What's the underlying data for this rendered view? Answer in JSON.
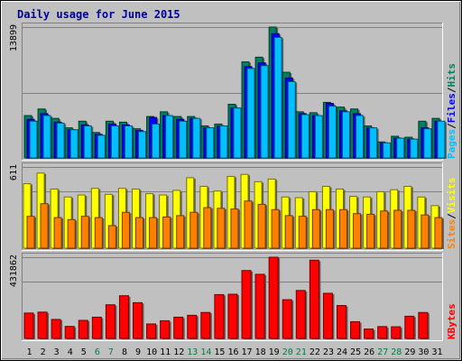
{
  "chart_data": {
    "type": "bar",
    "title": "Daily usage for June 2015",
    "categories": [
      "1",
      "2",
      "3",
      "4",
      "5",
      "6",
      "7",
      "8",
      "9",
      "10",
      "11",
      "12",
      "13",
      "14",
      "15",
      "16",
      "17",
      "18",
      "19",
      "20",
      "21",
      "22",
      "23",
      "24",
      "25",
      "26",
      "27",
      "28",
      "29",
      "30",
      "31"
    ],
    "weekend_days": [
      "6",
      "7",
      "13",
      "14",
      "20",
      "21",
      "27",
      "28"
    ],
    "colors": {
      "hits": "#00805c",
      "files": "#0000ff",
      "pages": "#00c0ff",
      "visits": "#ffff00",
      "sites": "#ff8000",
      "kbytes": "#ff0000",
      "title": "#0000a0",
      "weekend_tick": "#008040",
      "weekday_tick": "#000000",
      "panel_bg": "#c0c0c0",
      "grid": "#808080"
    },
    "panels": [
      {
        "id": "hits-files-pages",
        "ymax_label": "13899",
        "ymax": 13899,
        "legend": [
          {
            "text": "Pages",
            "color": "#00c0ff"
          },
          {
            "text": "/",
            "color": "#000000"
          },
          {
            "text": "Files",
            "color": "#0000ff"
          },
          {
            "text": "/",
            "color": "#000000"
          },
          {
            "text": "Hits",
            "color": "#00805c"
          }
        ],
        "series": [
          {
            "name": "Hits",
            "values": [
              4500,
              5200,
              4200,
              3200,
              3900,
              2700,
              3900,
              3800,
              3100,
              4400,
              4900,
              4400,
              4400,
              3400,
              3600,
              5700,
              10200,
              10700,
              13899,
              9100,
              4900,
              4800,
              5900,
              5400,
              5200,
              3400,
              1700,
              2300,
              2200,
              3900,
              4200
            ]
          },
          {
            "name": "Files",
            "values": [
              4100,
              4700,
              3800,
              3000,
              3500,
              2500,
              3600,
              3500,
              2900,
              4300,
              4500,
              4100,
              4200,
              3200,
              3400,
              5300,
              9700,
              10100,
              13200,
              8500,
              4700,
              4500,
              5800,
              5000,
              4700,
              3200,
              1600,
              2100,
              2000,
              3200,
              3900
            ]
          },
          {
            "name": "Pages",
            "values": [
              3900,
              4500,
              3700,
              3000,
              3400,
              2400,
              3400,
              3400,
              2800,
              3600,
              4500,
              3900,
              4200,
              3200,
              3400,
              5300,
              9500,
              9800,
              12800,
              8100,
              4600,
              4500,
              5500,
              4900,
              4500,
              3200,
              1600,
              2100,
              2000,
              3100,
              3900
            ]
          }
        ]
      },
      {
        "id": "visits-sites",
        "ymax_label": "611",
        "ymax": 611,
        "legend": [
          {
            "text": "Sites",
            "color": "#ff8000"
          },
          {
            "text": "/",
            "color": "#000000"
          },
          {
            "text": "Visits",
            "color": "#ffff00"
          }
        ],
        "series": [
          {
            "name": "Visits",
            "values": [
              485,
              565,
              445,
              385,
              400,
              450,
              405,
              450,
              445,
              410,
              400,
              435,
              530,
              465,
              430,
              540,
              555,
              500,
              520,
              385,
              380,
              425,
              465,
              445,
              390,
              385,
              425,
              440,
              465,
              385,
              320
            ]
          },
          {
            "name": "Sites",
            "values": [
              240,
              335,
              230,
              215,
              240,
              230,
              170,
              270,
              230,
              230,
              235,
              245,
              270,
              305,
              300,
              295,
              355,
              330,
              290,
              245,
              240,
              290,
              290,
              290,
              260,
              255,
              280,
              285,
              285,
              250,
              230
            ]
          }
        ]
      },
      {
        "id": "kbytes",
        "ymax_label": "431862",
        "ymax": 431862,
        "legend": [
          {
            "text": "KBytes",
            "color": "#ff0000"
          }
        ],
        "series": [
          {
            "name": "KBytes",
            "values": [
              135000,
              140000,
              101000,
              64000,
              96000,
              113000,
              179000,
              227000,
              190000,
              77000,
              94000,
              113000,
              123000,
              138000,
              233000,
              235000,
              361000,
              341000,
              431862,
              206000,
              255000,
              416000,
              240000,
              175000,
              89000,
              50000,
              63000,
              62000,
              118000,
              138000,
              0
            ]
          }
        ]
      }
    ]
  }
}
